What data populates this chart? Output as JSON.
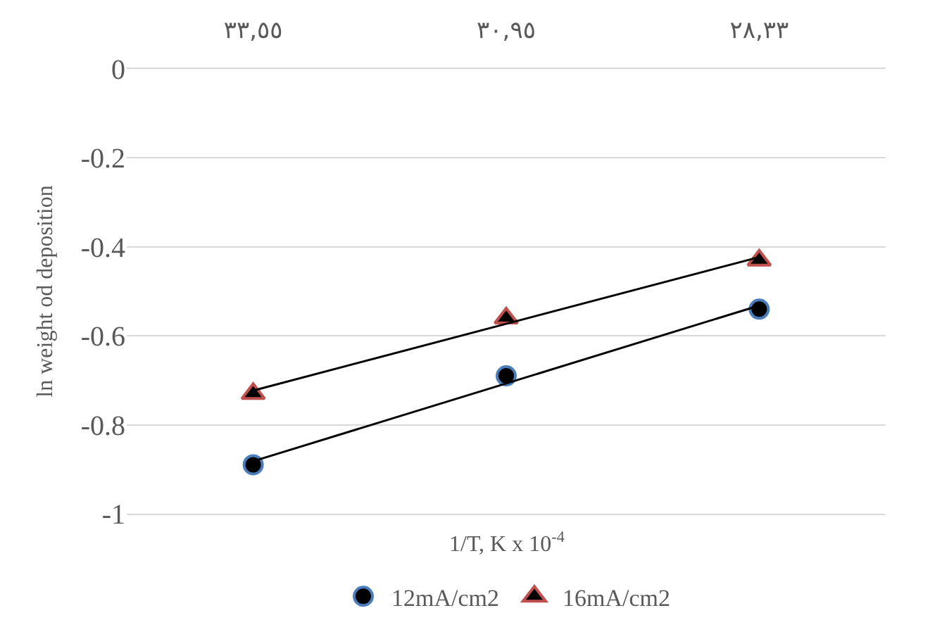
{
  "chart_data": {
    "type": "scatter",
    "xlabel": "1/T, K x 10$^{-4}$",
    "ylabel": "ln weight od deposition",
    "categories": [
      "٣٣,٥٥",
      "٣٠,٩٥",
      "٢٨,٣٣"
    ],
    "series": [
      {
        "name": "12mA/cm2",
        "color": "#000000",
        "marker": "circle",
        "values": [
          -0.89,
          -0.69,
          -0.54
        ]
      },
      {
        "name": "16mA/cm2",
        "color": "#000000",
        "marker": "triangle",
        "values": [
          -0.73,
          -0.56,
          -0.43
        ]
      },
      {
        "type": "line",
        "color": "#000000",
        "marker": "none",
        "x": [
          "٣٣,٥٥",
          "٣٠,٩٥",
          "٢٨,٣٣"
        ],
        "values": [
          -0.882,
          -0.707,
          -0.532
        ]
      },
      {
        "type": "line",
        "color": "#000000",
        "marker": "none",
        "x": [
          "٣٣,٥٥",
          "٣٠,٩٥",
          "٢٨,٣٣"
        ],
        "values": [
          -0.723,
          -0.573,
          -0.423
        ]
      }
    ],
    "ylim": [
      -1,
      0
    ],
    "yticks": [
      -1,
      -0.8,
      -0.6,
      -0.4,
      -0.2,
      0
    ],
    "grid": "y",
    "legend": "bottom"
  }
}
